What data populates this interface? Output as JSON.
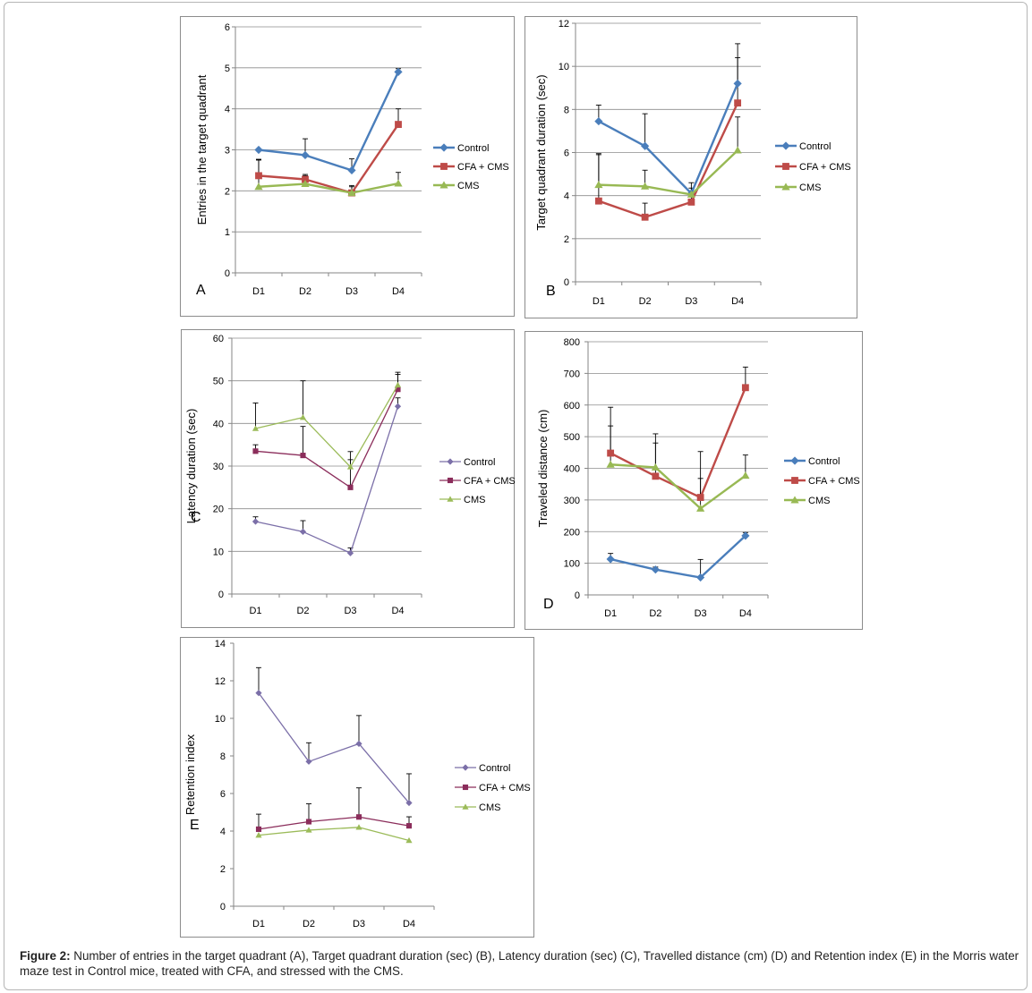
{
  "caption": {
    "label": "Figure 2:",
    "text": " Number of entries in the target quadrant (A), Target quadrant duration (sec) (B), Latency duration (sec) (C), Travelled distance (cm) (D) and Retention index (E) in the Morris water maze test in Control mice, treated with CFA, and stressed with the CMS."
  },
  "colors": {
    "control_bold": "#4a7ebb",
    "cfa_bold": "#be4b48",
    "cms_bold": "#98b954",
    "control_thin": "#7b6fa8",
    "cfa_thin": "#8b2d5b",
    "cms_thin": "#9bbb59"
  },
  "chart_data": [
    {
      "id": "A",
      "type": "line",
      "panel_letter": "A",
      "ylabel": "Entries in the target quadrant",
      "ylim": [
        0,
        6
      ],
      "yticks": [
        0,
        1,
        2,
        3,
        4,
        5,
        6
      ],
      "categories": [
        "D1",
        "D2",
        "D3",
        "D4"
      ],
      "grid": true,
      "legend": "right",
      "series": [
        {
          "name": "Control",
          "values": [
            3.0,
            2.87,
            2.5,
            4.9
          ],
          "err": [
            0,
            0.4,
            0.28,
            0.08
          ]
        },
        {
          "name": "CFA + CMS",
          "values": [
            2.37,
            2.28,
            1.95,
            3.62
          ],
          "err": [
            0.4,
            0.12,
            0.15,
            0.38
          ]
        },
        {
          "name": "CMS",
          "values": [
            2.1,
            2.17,
            1.95,
            2.18
          ],
          "err": [
            0.65,
            0.2,
            0.18,
            0.27
          ]
        }
      ]
    },
    {
      "id": "B",
      "type": "line",
      "panel_letter": "B",
      "ylabel": "Target quadrant duration (sec)",
      "ylim": [
        0,
        12
      ],
      "yticks": [
        0,
        2,
        4,
        6,
        8,
        10,
        12
      ],
      "categories": [
        "D1",
        "D2",
        "D3",
        "D4"
      ],
      "grid": true,
      "legend": "right",
      "series": [
        {
          "name": "Control",
          "values": [
            7.45,
            6.3,
            4.1,
            9.2
          ],
          "err": [
            0.75,
            1.5,
            0.5,
            1.85
          ]
        },
        {
          "name": "CFA + CMS",
          "values": [
            3.75,
            3.0,
            3.7,
            8.3
          ],
          "err": [
            2.2,
            0.65,
            0.4,
            2.1
          ]
        },
        {
          "name": "CMS",
          "values": [
            4.5,
            4.43,
            4.05,
            6.1
          ],
          "err": [
            1.4,
            0.75,
            0.3,
            1.55
          ]
        }
      ]
    },
    {
      "id": "C",
      "type": "line",
      "panel_letter": "C",
      "ylabel": "Latency duration (sec)",
      "ylim": [
        0,
        60
      ],
      "yticks": [
        0,
        10,
        20,
        30,
        40,
        50,
        60
      ],
      "categories": [
        "D1",
        "D2",
        "D3",
        "D4"
      ],
      "grid": true,
      "legend": "right",
      "series": [
        {
          "name": "Control",
          "values": [
            17.0,
            14.6,
            9.6,
            44.0
          ],
          "err": [
            1.1,
            2.6,
            1.2,
            2.0
          ]
        },
        {
          "name": "CFA + CMS",
          "values": [
            33.5,
            32.5,
            25.0,
            48.0
          ],
          "err": [
            1.5,
            6.8,
            6.5,
            4.0
          ]
        },
        {
          "name": "CMS",
          "values": [
            38.8,
            41.4,
            29.8,
            49.0
          ],
          "err": [
            6.0,
            8.6,
            3.6,
            2.5
          ]
        }
      ]
    },
    {
      "id": "D",
      "type": "line",
      "panel_letter": "D",
      "ylabel": "Traveled distance (cm)",
      "ylim": [
        0,
        800
      ],
      "yticks": [
        0,
        100,
        200,
        300,
        400,
        500,
        600,
        700,
        800
      ],
      "categories": [
        "D1",
        "D2",
        "D3",
        "D4"
      ],
      "grid": true,
      "legend": "right",
      "series": [
        {
          "name": "Control",
          "values": [
            113,
            80,
            55,
            187
          ],
          "err": [
            18,
            8,
            57,
            10
          ]
        },
        {
          "name": "CFA + CMS",
          "values": [
            448,
            375,
            308,
            655
          ],
          "err": [
            145,
            105,
            145,
            65
          ]
        },
        {
          "name": "CMS",
          "values": [
            412,
            403,
            273,
            377
          ],
          "err": [
            122,
            106,
            95,
            65
          ]
        }
      ]
    },
    {
      "id": "E",
      "type": "line",
      "panel_letter": "E",
      "ylabel": "Retention index",
      "ylim": [
        0,
        14
      ],
      "yticks": [
        0,
        2,
        4,
        6,
        8,
        10,
        12,
        14
      ],
      "categories": [
        "D1",
        "D2",
        "D3",
        "D4"
      ],
      "grid": false,
      "legend": "right",
      "series": [
        {
          "name": "Control",
          "values": [
            11.35,
            7.7,
            8.65,
            5.5
          ],
          "err": [
            1.35,
            1.0,
            1.5,
            1.55
          ]
        },
        {
          "name": "CFA + CMS",
          "values": [
            4.1,
            4.5,
            4.75,
            4.28
          ],
          "err": [
            0.8,
            0.95,
            1.55,
            0.48
          ]
        },
        {
          "name": "CMS",
          "values": [
            3.78,
            4.05,
            4.2,
            3.5
          ],
          "err": [
            0,
            0,
            0,
            0
          ]
        }
      ]
    }
  ]
}
